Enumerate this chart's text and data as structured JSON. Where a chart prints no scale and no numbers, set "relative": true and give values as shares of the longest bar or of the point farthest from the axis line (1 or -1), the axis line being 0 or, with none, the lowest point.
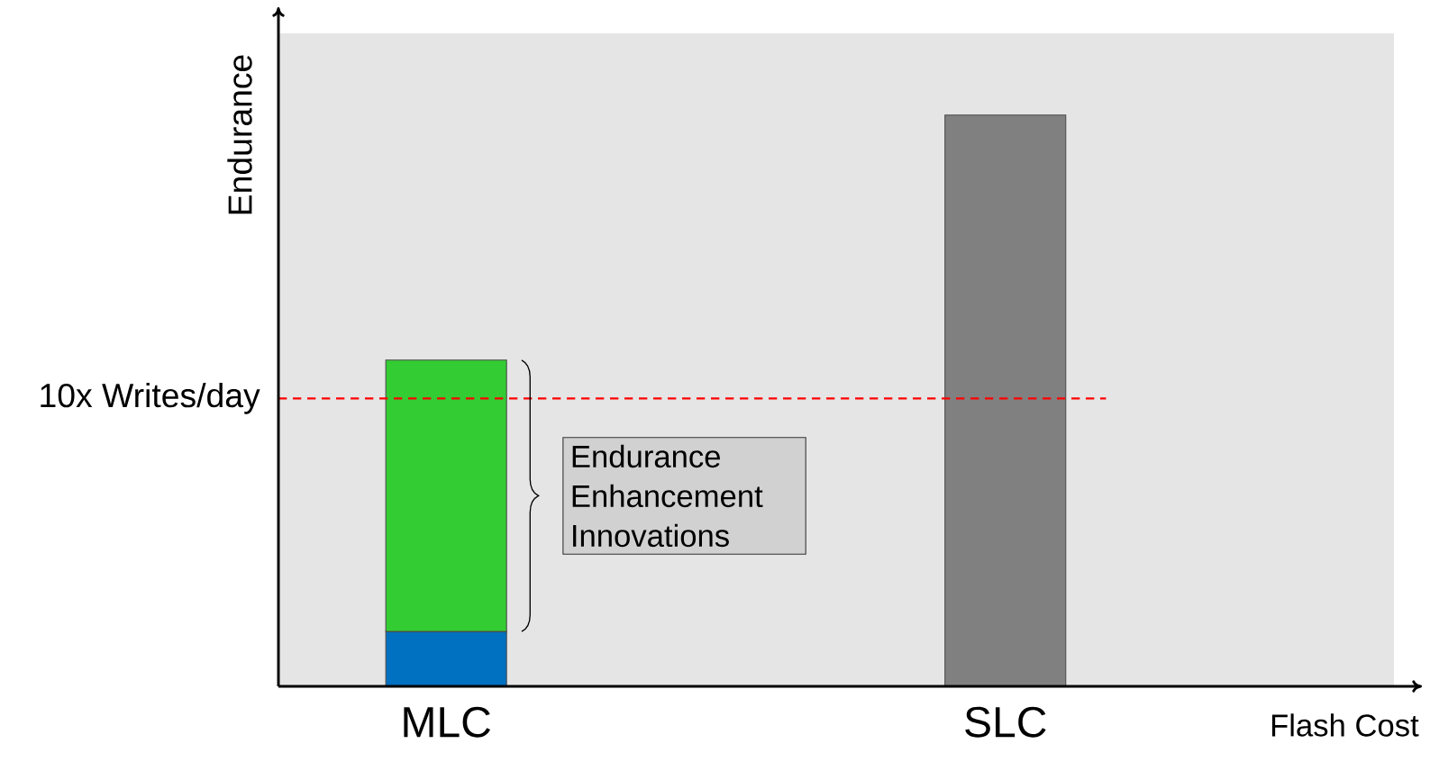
{
  "chart_data": {
    "type": "bar",
    "stacked": true,
    "relative": true,
    "ylabel": "Endurance",
    "xlabel": "Flash Cost",
    "categories": [
      "MLC",
      "SLC"
    ],
    "series": [
      {
        "values": [
          0.096,
          1
        ],
        "colors": [
          "#0070c0",
          "#808080"
        ]
      },
      {
        "values": [
          0.475,
          null
        ],
        "color": "#33cc33"
      }
    ],
    "ref_lines": [
      {
        "axis": "y",
        "value": 0.504,
        "label": "10x Writes/day",
        "color": "#ff0000",
        "line_style": "dashed"
      }
    ],
    "annotations": [
      "Endurance Enhancement Innovations"
    ]
  }
}
